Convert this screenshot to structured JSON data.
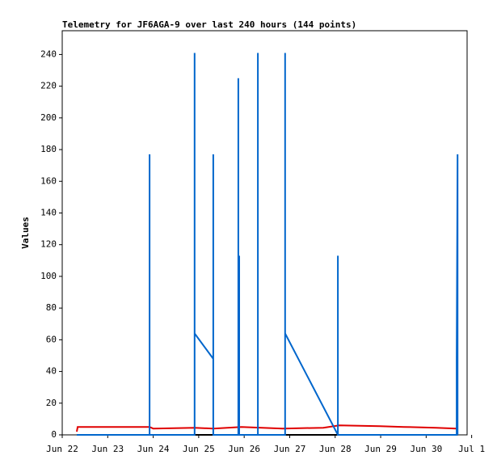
{
  "chart_data": {
    "type": "line",
    "title": "Telemetry for JF6AGA-9 over last 240 hours (144 points)",
    "y_label": "Values",
    "xlim": [
      0,
      8.9
    ],
    "xticks": [
      {
        "value": 0,
        "label": "Jun 22"
      },
      {
        "value": 1,
        "label": "Jun 23"
      },
      {
        "value": 2,
        "label": "Jun 24"
      },
      {
        "value": 3,
        "label": "Jun 25"
      },
      {
        "value": 4,
        "label": "Jun 26"
      },
      {
        "value": 5,
        "label": "Jun 27"
      },
      {
        "value": 6,
        "label": "Jun 28"
      },
      {
        "value": 7,
        "label": "Jun 29"
      },
      {
        "value": 8,
        "label": "Jun 30"
      },
      {
        "value": 9,
        "label": "Jul 1"
      }
    ],
    "ylim": [
      0,
      255
    ],
    "yticks": [
      0,
      20,
      40,
      60,
      80,
      100,
      120,
      140,
      160,
      180,
      200,
      220,
      240
    ],
    "series": [
      {
        "color": "#000000",
        "x": [
          0.32,
          8.69
        ],
        "values": [
          0,
          0
        ]
      },
      {
        "color": "#e00000",
        "x": [
          0.32,
          0.34,
          1.92,
          2.0,
          2.91,
          3.32,
          3.94,
          4.85,
          5.74,
          6.09,
          6.98,
          7.51,
          8.22,
          8.67
        ],
        "values": [
          2,
          5,
          5,
          4,
          4.5,
          4,
          5,
          4,
          4.5,
          6,
          5.5,
          5,
          4.5,
          4
        ]
      },
      {
        "color": "#0066cc",
        "x": [
          0.32,
          1.92,
          1.92,
          1.92,
          2.91,
          2.91,
          2.91,
          3.32,
          3.32,
          3.32,
          3.87,
          3.87,
          3.87,
          3.89,
          3.89,
          4.3,
          4.3,
          4.3,
          4.9,
          4.9,
          4.9,
          6.06,
          6.06,
          6.06,
          8.67,
          8.67,
          8.69,
          8.69
        ],
        "values": [
          0,
          0,
          177,
          0,
          0,
          241,
          64,
          48,
          177,
          0,
          0,
          225,
          0,
          113,
          0,
          0,
          241,
          0,
          0,
          241,
          64,
          0,
          113,
          0,
          0,
          48,
          177,
          0
        ]
      }
    ]
  }
}
